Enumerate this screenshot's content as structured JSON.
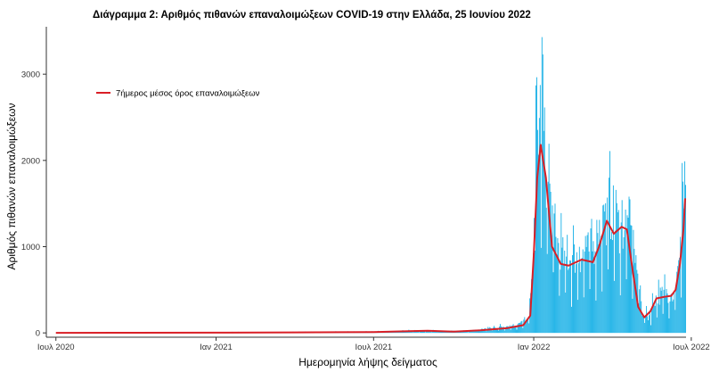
{
  "chart_data": {
    "type": "bar",
    "title": "Διάγραμμα 2: Αριθμός πιθανών επαναλοιμώξεων COVID-19 στην Ελλάδα, 25 Ιουνίου 2022",
    "xlabel": "Ημερομηνία λήψης δείγματος",
    "ylabel": "Αριθμός πιθανών επαναλοιμώξεων",
    "x_range": [
      "2020-06-20",
      "2022-06-25"
    ],
    "ylim": [
      -50,
      3550
    ],
    "y_ticks": [
      0,
      1000,
      2000,
      3000
    ],
    "x_ticks": [
      {
        "date": "2020-07-01",
        "label": "Ιουλ 2020"
      },
      {
        "date": "2021-01-01",
        "label": "Ιαν 2021"
      },
      {
        "date": "2021-07-01",
        "label": "Ιουλ 2021"
      },
      {
        "date": "2022-01-01",
        "label": "Ιαν 2022"
      },
      {
        "date": "2022-07-01",
        "label": "Ιουλ 2022"
      }
    ],
    "legend": {
      "position": "top-left",
      "label": "7ήμερος μέσος όρος επαναλοιμώξεων"
    },
    "grid": false,
    "colors": {
      "bars": "#29b6e8",
      "line": "#d91f26",
      "axis": "#333333"
    },
    "series": [
      {
        "kind": "bars",
        "x_start": "2020-07-01",
        "x_end": "2022-06-24",
        "profile": [
          [
            "2020-07-01",
            2
          ],
          [
            "2020-10-01",
            5
          ],
          [
            "2021-01-01",
            8
          ],
          [
            "2021-04-01",
            10
          ],
          [
            "2021-07-01",
            15
          ],
          [
            "2021-08-15",
            25
          ],
          [
            "2021-10-15",
            20
          ],
          [
            "2021-11-15",
            60
          ],
          [
            "2021-12-10",
            90
          ],
          [
            "2021-12-25",
            150
          ],
          [
            "2021-12-29",
            500
          ],
          [
            "2022-01-02",
            1800
          ],
          [
            "2022-01-05",
            2300
          ],
          [
            "2022-01-09",
            2600
          ],
          [
            "2022-01-15",
            1900
          ],
          [
            "2022-01-25",
            1100
          ],
          [
            "2022-02-05",
            850
          ],
          [
            "2022-02-25",
            900
          ],
          [
            "2022-03-10",
            1000
          ],
          [
            "2022-03-20",
            1300
          ],
          [
            "2022-04-01",
            1400
          ],
          [
            "2022-04-10",
            1200
          ],
          [
            "2022-04-20",
            1300
          ],
          [
            "2022-04-30",
            700
          ],
          [
            "2022-05-05",
            250
          ],
          [
            "2022-05-12",
            180
          ],
          [
            "2022-05-20",
            400
          ],
          [
            "2022-06-01",
            470
          ],
          [
            "2022-06-10",
            450
          ],
          [
            "2022-06-17",
            800
          ],
          [
            "2022-06-24",
            1800
          ]
        ],
        "spikes": [
          [
            "2022-01-03",
            2870
          ],
          [
            "2022-01-10",
            3430
          ],
          [
            "2022-03-28",
            1800
          ],
          [
            "2022-04-12",
            1540
          ],
          [
            "2022-06-20",
            1970
          ],
          [
            "2022-06-23",
            1990
          ]
        ]
      },
      {
        "kind": "line",
        "name": "7ήμερος μέσος όρος επαναλοιμώξεων",
        "points": [
          [
            "2020-07-01",
            0
          ],
          [
            "2020-10-01",
            2
          ],
          [
            "2021-01-01",
            3
          ],
          [
            "2021-04-01",
            5
          ],
          [
            "2021-07-01",
            10
          ],
          [
            "2021-08-10",
            20
          ],
          [
            "2021-09-01",
            25
          ],
          [
            "2021-10-01",
            15
          ],
          [
            "2021-11-01",
            30
          ],
          [
            "2021-12-01",
            55
          ],
          [
            "2021-12-20",
            90
          ],
          [
            "2021-12-28",
            200
          ],
          [
            "2022-01-01",
            900
          ],
          [
            "2022-01-05",
            1800
          ],
          [
            "2022-01-09",
            2180
          ],
          [
            "2022-01-15",
            1800
          ],
          [
            "2022-01-22",
            1000
          ],
          [
            "2022-02-01",
            800
          ],
          [
            "2022-02-10",
            780
          ],
          [
            "2022-02-25",
            850
          ],
          [
            "2022-03-10",
            820
          ],
          [
            "2022-03-17",
            1000
          ],
          [
            "2022-03-26",
            1300
          ],
          [
            "2022-04-03",
            1150
          ],
          [
            "2022-04-12",
            1230
          ],
          [
            "2022-04-18",
            1200
          ],
          [
            "2022-04-25",
            700
          ],
          [
            "2022-05-01",
            300
          ],
          [
            "2022-05-08",
            180
          ],
          [
            "2022-05-15",
            250
          ],
          [
            "2022-05-22",
            400
          ],
          [
            "2022-06-01",
            420
          ],
          [
            "2022-06-08",
            430
          ],
          [
            "2022-06-13",
            500
          ],
          [
            "2022-06-18",
            800
          ],
          [
            "2022-06-22",
            1200
          ],
          [
            "2022-06-24",
            1560
          ]
        ]
      }
    ]
  }
}
